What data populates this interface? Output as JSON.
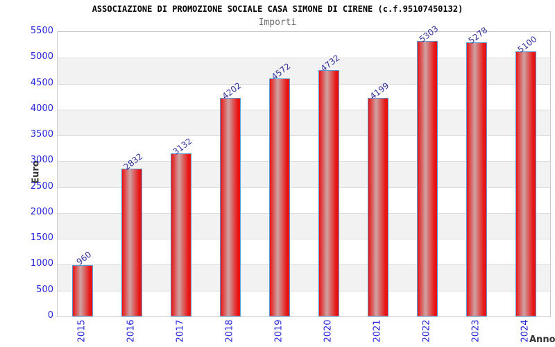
{
  "chart_data": {
    "type": "bar",
    "title": "ASSOCIAZIONE DI PROMOZIONE SOCIALE CASA SIMONE DI CIRENE (c.f.95107450132)",
    "subtitle": "Importi",
    "xlabel": "Anno",
    "ylabel": "Euro",
    "categories": [
      "2015",
      "2016",
      "2017",
      "2018",
      "2019",
      "2020",
      "2021",
      "2022",
      "2023",
      "2024"
    ],
    "values": [
      960,
      2832,
      3132,
      4202,
      4572,
      4732,
      4199,
      5303,
      5278,
      5100
    ],
    "ylim": [
      0,
      5500
    ],
    "ytick_step": 500,
    "grid": "horizontal",
    "legend": "none",
    "colors": {
      "bar_fill_edge": "#e81414",
      "bar_fill_mid": "#cfa3a3",
      "bar_border": "#5b9bd5",
      "tick_label": "#2525dd",
      "value_label": "#31319c",
      "band_shade": "#f2f2f2",
      "gridline": "#dcdcdc",
      "plot_border": "#c9c9c9",
      "title": "#000000",
      "subtitle": "#6e6e6e",
      "axis_title": "#333333"
    }
  }
}
